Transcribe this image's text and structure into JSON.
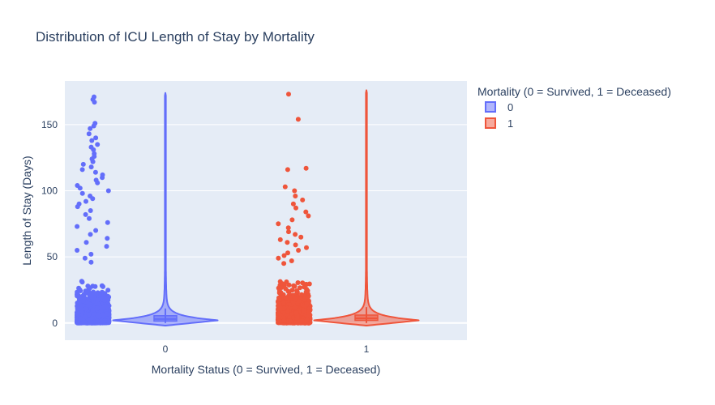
{
  "chart_data": {
    "type": "violin",
    "title": "Distribution of ICU Length of Stay by Mortality",
    "xlabel": "Mortality Status (0 = Survived, 1 = Deceased)",
    "ylabel": "Length of Stay (Days)",
    "categories": [
      "0",
      "1"
    ],
    "ylim": [
      -13,
      183
    ],
    "yticks": [
      0,
      50,
      100,
      150
    ],
    "grid": true,
    "legend": {
      "title": "Mortality (0 = Survived, 1 = Deceased)",
      "placement": "top-right"
    },
    "series": [
      {
        "name": "0",
        "color": "#636efa",
        "points_max": 171,
        "outlier_points": [
          171,
          169,
          167,
          151,
          149,
          147,
          143,
          140,
          138,
          135,
          133,
          131,
          128,
          126,
          124,
          122,
          120,
          118,
          116,
          114,
          112,
          110,
          108,
          106,
          104,
          102,
          100,
          98,
          96,
          94,
          92,
          90,
          88,
          85,
          82,
          79,
          76,
          73,
          70,
          67,
          64,
          61,
          58,
          55,
          52,
          49,
          46
        ],
        "violin": {
          "min": -2,
          "max": 174,
          "median": 3,
          "q1": 1.5,
          "q3": 5.5,
          "lower_fence": 0,
          "upper_fence": 11
        }
      },
      {
        "name": "1",
        "color": "#ef553b",
        "points_max": 173,
        "outlier_points": [
          173,
          154,
          117,
          116,
          103,
          100,
          96,
          93,
          90,
          87,
          84,
          81,
          78,
          75,
          72,
          69,
          67,
          65,
          63,
          61,
          59,
          57,
          55,
          53,
          51,
          49,
          47,
          45
        ],
        "violin": {
          "min": -2,
          "max": 176,
          "median": 3.5,
          "q1": 2,
          "q3": 6,
          "lower_fence": 0,
          "upper_fence": 12
        }
      }
    ]
  }
}
